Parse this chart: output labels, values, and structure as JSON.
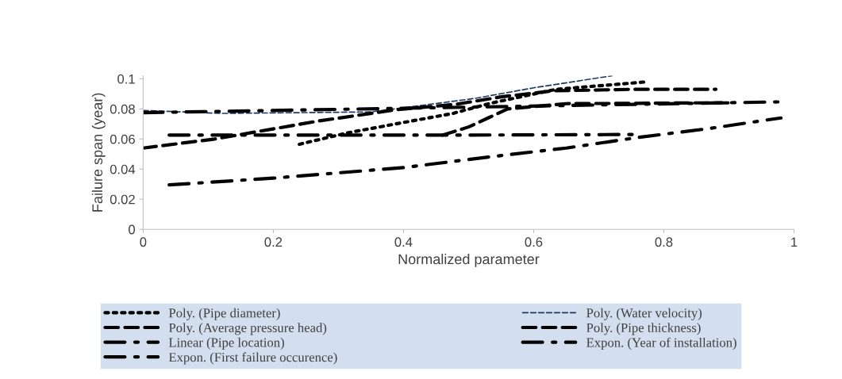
{
  "chart_data": {
    "type": "line",
    "xlabel": "Normalized parameter",
    "ylabel": "Failure span (year)",
    "xlim": [
      0,
      1
    ],
    "xticks": [
      0,
      0.2,
      0.4,
      0.6,
      0.8,
      1
    ],
    "ylim": [
      0,
      0.102
    ],
    "yticks": [
      0,
      0.02,
      0.04,
      0.06,
      0.08,
      0.1
    ],
    "grid": false,
    "legend": "bottom",
    "marker": "none",
    "series": [
      {
        "name": "Poly. (Pipe diameter)",
        "color": "#000000",
        "line_style": "dotted",
        "x": [
          0.24,
          0.313,
          0.394,
          0.476,
          0.533,
          0.634,
          0.774
        ],
        "values": [
          0.0565,
          0.064,
          0.0705,
          0.077,
          0.0837,
          0.093,
          0.098
        ]
      },
      {
        "name": "Poly. (Water velocity)",
        "color": "#1f3864",
        "line_style": "dashed",
        "x": [
          0,
          0.12,
          0.35,
          0.44,
          0.51,
          0.6,
          0.72
        ],
        "values": [
          0.079,
          0.077,
          0.078,
          0.083,
          0.087,
          0.094,
          0.102
        ]
      },
      {
        "name": "Poly. (Average pressure head)",
        "color": "#000000",
        "line_style": "dashed",
        "x": [
          0,
          0.11,
          0.27,
          0.39,
          0.48,
          0.55,
          0.63,
          0.75,
          0.88
        ],
        "values": [
          0.054,
          0.06,
          0.072,
          0.0795,
          0.083,
          0.088,
          0.092,
          0.093,
          0.093
        ]
      },
      {
        "name": "Poly. (Pipe thickness)",
        "color": "#000000",
        "line_style": "dashed",
        "x": [
          0.46,
          0.5,
          0.53,
          0.56,
          0.65,
          0.75,
          0.85,
          0.9
        ],
        "values": [
          0.0626,
          0.068,
          0.074,
          0.08,
          0.0835,
          0.0837,
          0.084,
          0.084
        ]
      },
      {
        "name": "Linear (Pipe location)",
        "color": "#000000",
        "line_style": "dashdot",
        "x": [
          0,
          0.98
        ],
        "values": [
          0.0775,
          0.0847
        ]
      },
      {
        "name": "Expon. (Year of installation)",
        "color": "#000000",
        "line_style": "dashdot",
        "x": [
          0.04,
          0.3,
          0.5,
          0.76
        ],
        "values": [
          0.0626,
          0.0626,
          0.0626,
          0.063
        ]
      },
      {
        "name": "Expon. (First failure occurence)",
        "color": "#000000",
        "line_style": "dashdot",
        "x": [
          0.04,
          0.2,
          0.4,
          0.53,
          0.65,
          0.76,
          0.87,
          0.98
        ],
        "values": [
          0.0295,
          0.034,
          0.041,
          0.048,
          0.054,
          0.061,
          0.067,
          0.074
        ]
      }
    ]
  }
}
